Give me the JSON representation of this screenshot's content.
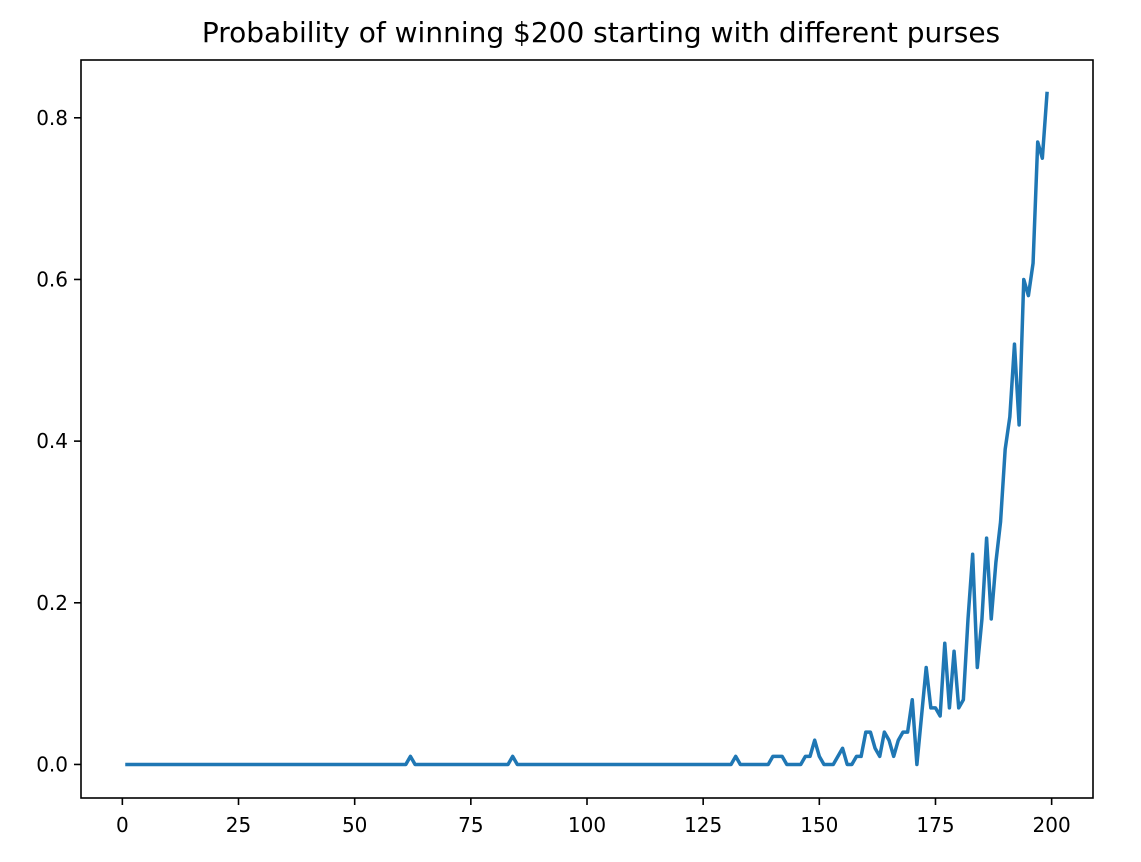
{
  "chart_data": {
    "type": "line",
    "title": "Probability of winning $200 starting with different purses",
    "xlabel": "",
    "ylabel": "",
    "xlim": [
      -8.9,
      208.9
    ],
    "ylim": [
      -0.0415,
      0.8715
    ],
    "xticks": [
      0,
      25,
      50,
      75,
      100,
      125,
      150,
      175,
      200
    ],
    "xtick_labels": [
      "0",
      "25",
      "50",
      "75",
      "100",
      "125",
      "150",
      "175",
      "200"
    ],
    "yticks": [
      0.0,
      0.2,
      0.4,
      0.6,
      0.8
    ],
    "ytick_labels": [
      "0.0",
      "0.2",
      "0.4",
      "0.6",
      "0.8"
    ],
    "grid": false,
    "color": "#1f77b4",
    "series": [
      {
        "x": [
          1,
          61,
          62,
          63,
          83,
          84,
          85,
          131,
          132,
          133,
          139,
          140,
          142,
          143,
          146,
          147,
          148,
          149,
          150,
          151,
          153,
          155,
          156,
          157,
          158,
          159,
          160,
          161,
          162,
          163,
          164,
          165,
          166,
          167,
          168,
          169,
          170,
          171,
          172,
          173,
          174,
          175,
          176,
          177,
          178,
          179,
          180,
          181,
          182,
          183,
          184,
          185,
          186,
          187,
          188,
          189,
          190,
          191,
          192,
          193,
          194,
          195,
          196,
          197,
          198,
          199
        ],
        "y": [
          0,
          0,
          0.01,
          0,
          0,
          0.01,
          0,
          0,
          0.01,
          0,
          0,
          0.01,
          0.01,
          0,
          0,
          0.01,
          0.01,
          0.03,
          0.01,
          0,
          0,
          0.02,
          0,
          0,
          0.01,
          0.01,
          0.04,
          0.04,
          0.02,
          0.01,
          0.04,
          0.03,
          0.01,
          0.03,
          0.04,
          0.04,
          0.08,
          0,
          0.06,
          0.12,
          0.07,
          0.07,
          0.06,
          0.15,
          0.07,
          0.14,
          0.07,
          0.08,
          0.18,
          0.26,
          0.12,
          0.18,
          0.28,
          0.18,
          0.25,
          0.3,
          0.39,
          0.43,
          0.52,
          0.42,
          0.6,
          0.58,
          0.62,
          0.77,
          0.75,
          0.83
        ]
      }
    ]
  }
}
